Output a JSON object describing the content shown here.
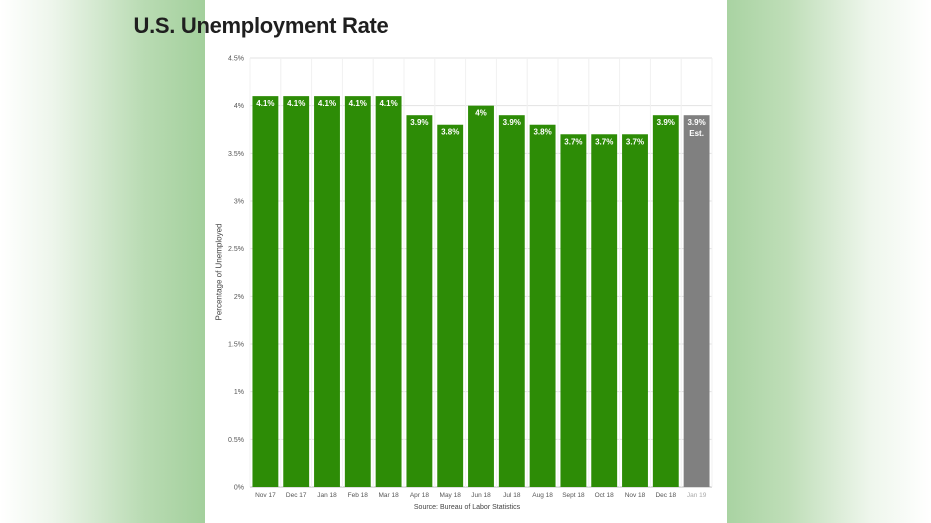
{
  "chart_data": {
    "type": "bar",
    "title": "U.S. Unemployment Rate",
    "ylabel": "Percentage of Unemployed",
    "xlabel": "",
    "source": "Source: Bureau of Labor Statistics",
    "ylim": [
      0,
      4.5
    ],
    "yticks": [
      "0%",
      "0.5%",
      "1%",
      "1.5%",
      "2%",
      "2.5%",
      "3%",
      "3.5%",
      "4%",
      "4.5%"
    ],
    "grid": true,
    "categories": [
      "Nov 17",
      "Dec 17",
      "Jan 18",
      "Feb 18",
      "Mar 18",
      "Apr 18",
      "May 18",
      "Jun 18",
      "Jul 18",
      "Aug 18",
      "Sept 18",
      "Oct 18",
      "Nov 18",
      "Dec 18",
      "Jan 19"
    ],
    "values": [
      4.1,
      4.1,
      4.1,
      4.1,
      4.1,
      3.9,
      3.8,
      4.0,
      3.9,
      3.8,
      3.7,
      3.7,
      3.7,
      3.9,
      3.9
    ],
    "data_labels": [
      "4.1%",
      "4.1%",
      "4.1%",
      "4.1%",
      "4.1%",
      "3.9%",
      "3.8%",
      "4%",
      "3.9%",
      "3.8%",
      "3.7%",
      "3.7%",
      "3.7%",
      "3.9%",
      "3.9%"
    ],
    "estimate_note": "Est.",
    "estimated_index": 14,
    "colors": {
      "actual": "#2d8c06",
      "estimate": "#808080",
      "grid": "#e3e3e3"
    }
  }
}
